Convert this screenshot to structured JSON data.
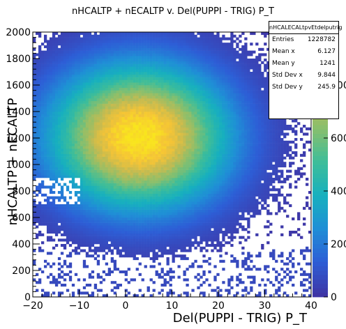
{
  "chart_data": {
    "type": "heatmap",
    "title": "nHCALTP + nECALTP v. Del(PUPPI - TRIG) P_T",
    "xlabel": "Del(PUPPI - TRIG) P_T",
    "ylabel": "nHCALTP + nECALTP",
    "xlim": [
      -20,
      40
    ],
    "ylim": [
      0,
      2000
    ],
    "x_ticks": [
      "−20",
      "−10",
      "0",
      "10",
      "20",
      "30",
      "40"
    ],
    "y_ticks": [
      "0",
      "200",
      "400",
      "600",
      "800",
      "1000",
      "1200",
      "1400",
      "1600",
      "1800",
      "2000"
    ],
    "z_range": [
      0,
      1000
    ],
    "palette_ticks": [
      "0",
      "200",
      "400",
      "600",
      "800"
    ],
    "palette_colors": [
      "#3f36a6",
      "#2d5ed6",
      "#1f8fd6",
      "#17b0be",
      "#3dbd9a",
      "#86bf6e",
      "#c7bb4f",
      "#f5c436",
      "#f9e51d"
    ],
    "stats": {
      "name": "nHCALECALtpvEtdelputrig",
      "rows": [
        {
          "label": "Entries",
          "value": "1228782"
        },
        {
          "label": "Mean x",
          "value": "6.127"
        },
        {
          "label": "Mean y",
          "value": "1241"
        },
        {
          "label": "Std Dev x",
          "value": "9.844"
        },
        {
          "label": "Std Dev y",
          "value": "245.9"
        }
      ]
    },
    "distribution": {
      "peak_x": 3,
      "peak_y": 1210,
      "peak_z": 1000,
      "sigma_x": 8.5,
      "sigma_y": 240
    },
    "grid": false
  }
}
